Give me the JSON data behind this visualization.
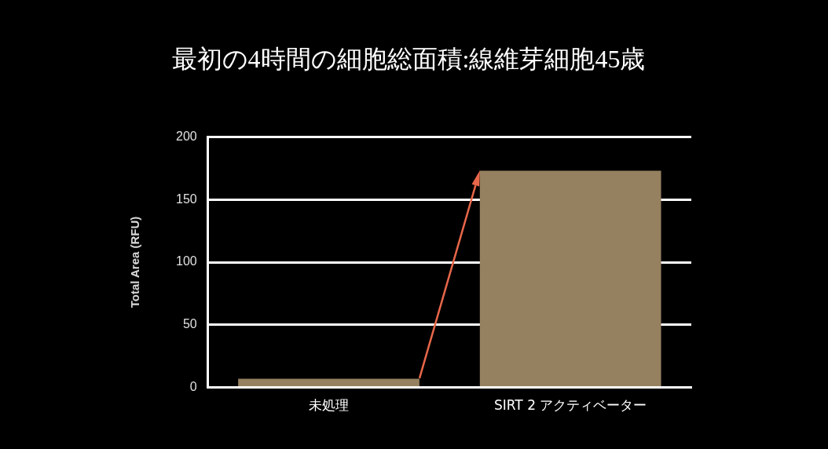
{
  "chart_data": {
    "type": "bar",
    "title": "最初の4時間の細胞総面積:線維芽細胞45歳",
    "ylabel": "Total Area (RFU)",
    "categories": [
      "未処理",
      "SIRT 2 アクティベーター"
    ],
    "values": [
      7,
      173
    ],
    "color": "#958060",
    "ylim": [
      0,
      200
    ],
    "yticks": [
      0,
      50,
      100,
      150,
      200
    ],
    "grid": "y",
    "legend": false
  }
}
